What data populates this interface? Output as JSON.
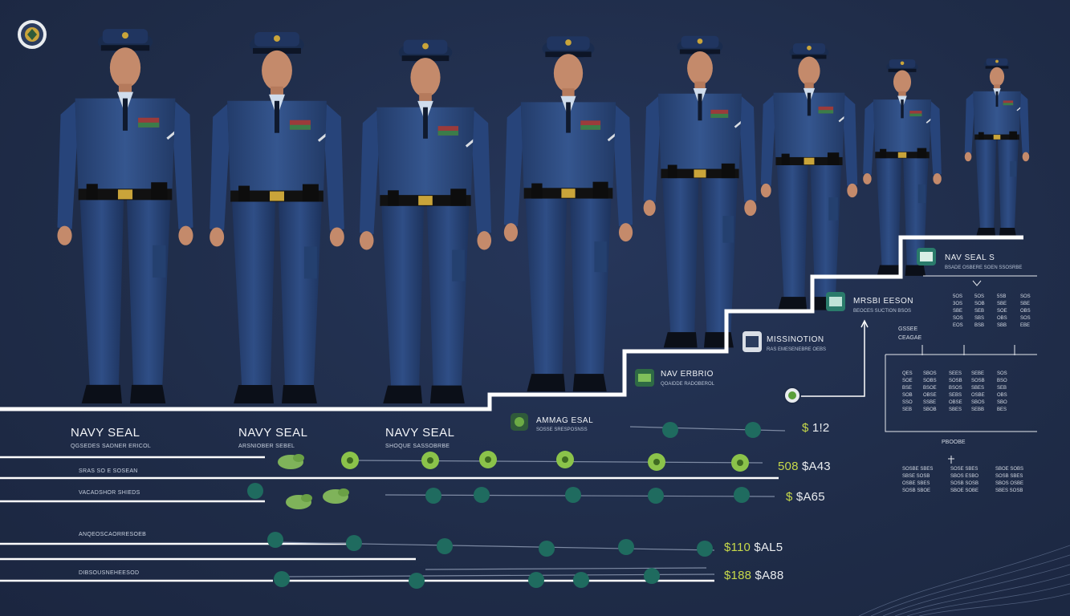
{
  "colors": {
    "background": "#1f2c48",
    "uniform": "#2e4a7d",
    "accent_green": "#5a9e3a",
    "accent_teal": "#1d6b5d",
    "line": "#ffffff"
  },
  "emblem": {
    "icon": "navy-emblem-icon"
  },
  "figures": [
    {
      "name": "figure-1"
    },
    {
      "name": "figure-2"
    },
    {
      "name": "figure-3"
    },
    {
      "name": "figure-4"
    },
    {
      "name": "figure-5"
    },
    {
      "name": "figure-6"
    },
    {
      "name": "figure-7"
    },
    {
      "name": "figure-8"
    }
  ],
  "rank_labels": {
    "seal_1": "NAVY SEAL",
    "seal_2": "NAVY SEAL",
    "seal_3": "NAVY  SEAL",
    "seal_1_sub": "QGSEDES SADNER ERICOL",
    "seal_2_sub": "ARSNIOBER SEBEL",
    "seal_3_sub": "SHOQUE SASSOBRBE",
    "left_row_2": "SRAS SO E SOSEAN",
    "left_row_3": "VACADSHOR SHIEDS",
    "left_row_4": "ANQEOSCAORRESOEB",
    "left_row_5": "DIBSOUSNEHEESOD"
  },
  "step_labels": {
    "step_1": "AMMAG ESAL",
    "step_1_sub": "SOSSE SRESPOSNSS",
    "step_2": "NAV ERBRIO",
    "step_2_sub": "QOAIDDE RADOBEROL",
    "step_3": "MISSINOTION",
    "step_3_sub": "RAS EMESENEBRE OEBS",
    "step_4": "MRSBI EESON",
    "step_4_sub": "BEOCES SUCTION BSOS",
    "step_5": "NAV SEAL S",
    "step_5_sub": "BSADE OSBERE SOEN SSOSRBE"
  },
  "values": {
    "v1_num": "$",
    "v1_rest": " 1!2",
    "v2_num": "508",
    "v2_rest": " $A43",
    "v3_num": "$",
    "v3_rest": " $A65",
    "v4_num": "$110",
    "v4_rest": " $AL5",
    "v5_num": "$188",
    "v5_rest": " $A88"
  },
  "right_panel": {
    "header_1": "GSSEE\nCEAGAE",
    "header_2": "PBOOBE",
    "grid_top": [
      "5OS\n3OS\nSBE\nSOS\nEOS",
      "5OS\nSOB\nSEB\nSBS\nBSB",
      "5SB\nSBE\nSOE\nOBS\nSBB",
      "SOS\nSBE\nOBS\nSOS\nEBE"
    ],
    "grid_mid": [
      "QES\nSOE\nBSE\nSOB\nSSO\nSEB",
      "SBOS\nSOBS\nBSOE\nOBSE\nSSBE\nSBOB",
      "SEES\nSOSB\nBSOS\nSEBS\nOBSE\nSBES",
      "SEBE\nSOSB\nSBES\nOSBE\nSBOS\nSEBB",
      "SOS\nBSO\nSEB\nOBS\nSBO\nBES"
    ],
    "grid_bot": [
      "SOSBE SBES\nSBSE SOSB\nOSBE SBES\nSOSB SBOE",
      "SOSE SBES\nSBOS ESBO\nSOSB SOSB\nSBOE SOBE",
      "SBOE SOBS\nSOSB SBES\nSBOS OSBE\nSBES SOSB"
    ]
  }
}
